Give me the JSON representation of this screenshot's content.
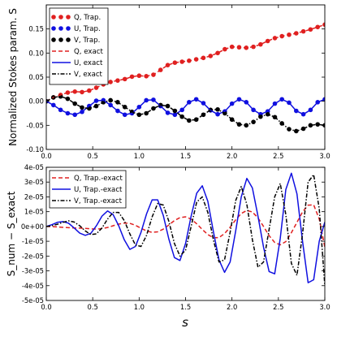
{
  "chart_data": [
    {
      "type": "line",
      "title": "",
      "xlabel": "",
      "ylabel": "Normalized Stokes param. S",
      "xlim": [
        0.0,
        3.0
      ],
      "ylim": [
        -0.1,
        0.2
      ],
      "xticks": [
        0.0,
        0.5,
        1.0,
        1.5,
        2.0,
        2.5,
        3.0
      ],
      "xtick_labels": [
        "0.0",
        "0.5",
        "1.0",
        "1.5",
        "2.0",
        "2.5",
        "3.0"
      ],
      "yticks": [
        -0.1,
        -0.05,
        0.0,
        0.05,
        0.1,
        0.15
      ],
      "ytick_labels": [
        "-0.10",
        "-0.05",
        "0.00",
        "0.05",
        "0.10",
        "0.15"
      ],
      "grid": false,
      "legend_position": "upper-left",
      "series": [
        {
          "name": "Q, Trap.",
          "style": "markers",
          "color": "#e02020",
          "x": [
            0.0,
            0.077,
            0.154,
            0.231,
            0.308,
            0.385,
            0.462,
            0.538,
            0.615,
            0.692,
            0.769,
            0.846,
            0.923,
            1.0,
            1.077,
            1.154,
            1.231,
            1.308,
            1.385,
            1.462,
            1.538,
            1.615,
            1.692,
            1.769,
            1.846,
            1.923,
            2.0,
            2.077,
            2.154,
            2.231,
            2.308,
            2.385,
            2.462,
            2.538,
            2.615,
            2.692,
            2.769,
            2.846,
            2.923,
            3.0
          ],
          "y": [
            0.0,
            0.008,
            0.013,
            0.018,
            0.02,
            0.019,
            0.022,
            0.028,
            0.035,
            0.04,
            0.043,
            0.046,
            0.051,
            0.053,
            0.052,
            0.055,
            0.065,
            0.075,
            0.08,
            0.082,
            0.084,
            0.087,
            0.09,
            0.094,
            0.1,
            0.108,
            0.113,
            0.112,
            0.111,
            0.113,
            0.118,
            0.125,
            0.131,
            0.135,
            0.138,
            0.141,
            0.145,
            0.149,
            0.154,
            0.159
          ]
        },
        {
          "name": "U, Trap.",
          "style": "markers",
          "color": "#1010e0",
          "x": [
            0.0,
            0.077,
            0.154,
            0.231,
            0.308,
            0.385,
            0.462,
            0.538,
            0.615,
            0.692,
            0.769,
            0.846,
            0.923,
            1.0,
            1.077,
            1.154,
            1.231,
            1.308,
            1.385,
            1.462,
            1.538,
            1.615,
            1.692,
            1.769,
            1.846,
            1.923,
            2.0,
            2.077,
            2.154,
            2.231,
            2.308,
            2.385,
            2.462,
            2.538,
            2.615,
            2.692,
            2.769,
            2.846,
            2.923,
            3.0
          ],
          "y": [
            0.0,
            -0.008,
            -0.018,
            -0.025,
            -0.028,
            -0.022,
            -0.01,
            0.001,
            0.002,
            -0.008,
            -0.02,
            -0.028,
            -0.025,
            -0.012,
            0.002,
            0.003,
            -0.01,
            -0.024,
            -0.028,
            -0.018,
            -0.002,
            0.004,
            -0.004,
            -0.019,
            -0.027,
            -0.021,
            -0.005,
            0.004,
            -0.002,
            -0.018,
            -0.027,
            -0.021,
            -0.005,
            0.004,
            -0.003,
            -0.02,
            -0.027,
            -0.018,
            -0.002,
            0.004
          ]
        },
        {
          "name": "V, Trap.",
          "style": "markers",
          "color": "#000000",
          "x": [
            0.0,
            0.077,
            0.154,
            0.231,
            0.308,
            0.385,
            0.462,
            0.538,
            0.615,
            0.692,
            0.769,
            0.846,
            0.923,
            1.0,
            1.077,
            1.154,
            1.231,
            1.308,
            1.385,
            1.462,
            1.538,
            1.615,
            1.692,
            1.769,
            1.846,
            1.923,
            2.0,
            2.077,
            2.154,
            2.231,
            2.308,
            2.385,
            2.462,
            2.538,
            2.615,
            2.692,
            2.769,
            2.846,
            2.923,
            3.0
          ],
          "y": [
            0.0,
            0.008,
            0.01,
            0.005,
            -0.005,
            -0.013,
            -0.015,
            -0.01,
            -0.002,
            0.002,
            -0.002,
            -0.012,
            -0.022,
            -0.028,
            -0.025,
            -0.015,
            -0.008,
            -0.01,
            -0.02,
            -0.032,
            -0.04,
            -0.038,
            -0.028,
            -0.018,
            -0.017,
            -0.025,
            -0.038,
            -0.048,
            -0.05,
            -0.043,
            -0.032,
            -0.027,
            -0.033,
            -0.046,
            -0.058,
            -0.062,
            -0.057,
            -0.05,
            -0.048,
            -0.05
          ]
        },
        {
          "name": "Q, exact",
          "style": "dashed",
          "color": "#e02020",
          "x": [
            0.0,
            0.077,
            0.154,
            0.231,
            0.308,
            0.385,
            0.462,
            0.538,
            0.615,
            0.692,
            0.769,
            0.846,
            0.923,
            1.0,
            1.077,
            1.154,
            1.231,
            1.308,
            1.385,
            1.462,
            1.538,
            1.615,
            1.692,
            1.769,
            1.846,
            1.923,
            2.0,
            2.077,
            2.154,
            2.231,
            2.308,
            2.385,
            2.462,
            2.538,
            2.615,
            2.692,
            2.769,
            2.846,
            2.923,
            3.0
          ],
          "y": [
            0.0,
            0.008,
            0.013,
            0.018,
            0.02,
            0.019,
            0.022,
            0.028,
            0.035,
            0.04,
            0.043,
            0.046,
            0.051,
            0.053,
            0.052,
            0.055,
            0.065,
            0.075,
            0.08,
            0.082,
            0.084,
            0.087,
            0.09,
            0.094,
            0.1,
            0.108,
            0.113,
            0.112,
            0.111,
            0.113,
            0.118,
            0.125,
            0.131,
            0.135,
            0.138,
            0.141,
            0.145,
            0.149,
            0.154,
            0.159
          ]
        },
        {
          "name": "U, exact",
          "style": "solid",
          "color": "#1010e0",
          "x": [
            0.0,
            0.077,
            0.154,
            0.231,
            0.308,
            0.385,
            0.462,
            0.538,
            0.615,
            0.692,
            0.769,
            0.846,
            0.923,
            1.0,
            1.077,
            1.154,
            1.231,
            1.308,
            1.385,
            1.462,
            1.538,
            1.615,
            1.692,
            1.769,
            1.846,
            1.923,
            2.0,
            2.077,
            2.154,
            2.231,
            2.308,
            2.385,
            2.462,
            2.538,
            2.615,
            2.692,
            2.769,
            2.846,
            2.923,
            3.0
          ],
          "y": [
            0.0,
            -0.008,
            -0.018,
            -0.025,
            -0.028,
            -0.022,
            -0.01,
            0.001,
            0.002,
            -0.008,
            -0.02,
            -0.028,
            -0.025,
            -0.012,
            0.002,
            0.003,
            -0.01,
            -0.024,
            -0.028,
            -0.018,
            -0.002,
            0.004,
            -0.004,
            -0.019,
            -0.027,
            -0.021,
            -0.005,
            0.004,
            -0.002,
            -0.018,
            -0.027,
            -0.021,
            -0.005,
            0.004,
            -0.003,
            -0.02,
            -0.027,
            -0.018,
            -0.002,
            0.004
          ]
        },
        {
          "name": "V, exact",
          "style": "dashdot",
          "color": "#000000",
          "x": [
            0.0,
            0.077,
            0.154,
            0.231,
            0.308,
            0.385,
            0.462,
            0.538,
            0.615,
            0.692,
            0.769,
            0.846,
            0.923,
            1.0,
            1.077,
            1.154,
            1.231,
            1.308,
            1.385,
            1.462,
            1.538,
            1.615,
            1.692,
            1.769,
            1.846,
            1.923,
            2.0,
            2.077,
            2.154,
            2.231,
            2.308,
            2.385,
            2.462,
            2.538,
            2.615,
            2.692,
            2.769,
            2.846,
            2.923,
            3.0
          ],
          "y": [
            0.0,
            0.008,
            0.01,
            0.005,
            -0.005,
            -0.013,
            -0.015,
            -0.01,
            -0.002,
            0.002,
            -0.002,
            -0.012,
            -0.022,
            -0.028,
            -0.025,
            -0.015,
            -0.008,
            -0.01,
            -0.02,
            -0.032,
            -0.04,
            -0.038,
            -0.028,
            -0.018,
            -0.017,
            -0.025,
            -0.038,
            -0.048,
            -0.05,
            -0.043,
            -0.032,
            -0.027,
            -0.033,
            -0.046,
            -0.058,
            -0.062,
            -0.057,
            -0.05,
            -0.048,
            -0.05
          ]
        }
      ]
    },
    {
      "type": "line",
      "title": "",
      "xlabel": "s",
      "ylabel": "S_num − S_exact",
      "xlim": [
        0.0,
        3.0
      ],
      "ylim": [
        -5e-05,
        4e-05
      ],
      "xticks": [
        0.0,
        0.5,
        1.0,
        1.5,
        2.0,
        2.5,
        3.0
      ],
      "xtick_labels": [
        "0.0",
        "0.5",
        "1.0",
        "1.5",
        "2.0",
        "2.5",
        "3.0"
      ],
      "yticks": [
        -5e-05,
        -4e-05,
        -3e-05,
        -2e-05,
        -1e-05,
        0,
        1e-05,
        2e-05,
        3e-05,
        4e-05
      ],
      "ytick_labels": [
        "-5e-05",
        "-4e-05",
        "-3e-05",
        "-2e-05",
        "-1e-05",
        "0e+00",
        "1e-05",
        "2e-05",
        "3e-05",
        "4e-05"
      ],
      "grid": false,
      "legend_position": "upper-left",
      "series": [
        {
          "name": "Q, Trap.-exact",
          "style": "dashed",
          "color": "#e02020",
          "x": [
            0.0,
            0.06,
            0.12,
            0.18,
            0.24,
            0.3,
            0.36,
            0.42,
            0.48,
            0.54,
            0.6,
            0.66,
            0.72,
            0.78,
            0.84,
            0.9,
            0.96,
            1.02,
            1.08,
            1.14,
            1.2,
            1.26,
            1.32,
            1.38,
            1.44,
            1.5,
            1.56,
            1.62,
            1.68,
            1.74,
            1.8,
            1.86,
            1.92,
            1.98,
            2.04,
            2.1,
            2.16,
            2.22,
            2.28,
            2.34,
            2.4,
            2.46,
            2.52,
            2.58,
            2.64,
            2.7,
            2.76,
            2.82,
            2.88,
            2.94,
            3.0
          ],
          "y": [
            0,
            -1e-07,
            -3e-07,
            -6e-07,
            -8e-07,
            -1e-06,
            -1.1e-06,
            -1.3e-06,
            -1.6e-06,
            -1.8e-06,
            -1.4e-06,
            -7e-07,
            5e-07,
            1.6e-06,
            2.3e-06,
            2.1e-06,
            8e-07,
            -1.2e-06,
            -3e-06,
            -4e-06,
            -3.6e-06,
            -1.8e-06,
            1e-06,
            4e-06,
            6e-06,
            6.5e-06,
            5e-06,
            1.8e-06,
            -2e-06,
            -5.5e-06,
            -7.6e-06,
            -7.5e-06,
            -4.8e-06,
            -5e-07,
            4.5e-06,
            8.8e-06,
            1.08e-05,
            9.8e-06,
            5.8e-06,
            0,
            -6.2e-06,
            -1.08e-05,
            -1.24e-05,
            -1.02e-05,
            -4.2e-06,
            2.8e-06,
            9.8e-06,
            1.44e-05,
            1.46e-05,
            5e-06,
            -1.4e-05
          ]
        },
        {
          "name": "U, Trap.-exact",
          "style": "solid",
          "color": "#1010e0",
          "x": [
            0.0,
            0.06,
            0.12,
            0.18,
            0.24,
            0.3,
            0.36,
            0.42,
            0.48,
            0.54,
            0.6,
            0.66,
            0.72,
            0.78,
            0.84,
            0.9,
            0.96,
            1.02,
            1.08,
            1.14,
            1.2,
            1.26,
            1.32,
            1.38,
            1.44,
            1.5,
            1.56,
            1.62,
            1.68,
            1.74,
            1.8,
            1.86,
            1.92,
            1.98,
            2.04,
            2.1,
            2.16,
            2.22,
            2.28,
            2.34,
            2.4,
            2.46,
            2.52,
            2.58,
            2.64,
            2.7,
            2.76,
            2.82,
            2.88,
            2.94,
            3.0
          ],
          "y": [
            0,
            1.2e-06,
            2.8e-06,
            3.3e-06,
            2.2e-06,
            -1e-06,
            -4.5e-06,
            -6e-06,
            -4.6e-06,
            5e-07,
            7e-06,
            1.05e-05,
            8e-06,
            5e-07,
            -9e-06,
            -1.55e-05,
            -1.35e-05,
            -4e-06,
            8.5e-06,
            1.8e-05,
            1.8e-05,
            7.5e-06,
            -8.5e-06,
            -2.1e-05,
            -2.3e-05,
            -1.15e-05,
            7e-06,
            2.25e-05,
            2.75e-05,
            1.7e-05,
            -3.5e-06,
            -2.25e-05,
            -3.1e-05,
            -2.4e-05,
            -3e-06,
            2e-05,
            3.25e-05,
            2.6e-05,
            7e-06,
            -1.4e-05,
            -3.05e-05,
            -3.2e-05,
            -8e-06,
            2.5e-05,
            3.6e-05,
            2.2e-05,
            -1e-05,
            -3.8e-05,
            -3.6e-05,
            -1e-05,
            3e-06
          ]
        },
        {
          "name": "V, Trap.-exact",
          "style": "dashdot",
          "color": "#000000",
          "x": [
            0.0,
            0.06,
            0.12,
            0.18,
            0.24,
            0.3,
            0.36,
            0.42,
            0.48,
            0.54,
            0.6,
            0.66,
            0.72,
            0.78,
            0.84,
            0.9,
            0.96,
            1.02,
            1.08,
            1.14,
            1.2,
            1.26,
            1.32,
            1.38,
            1.44,
            1.5,
            1.56,
            1.62,
            1.68,
            1.74,
            1.8,
            1.86,
            1.92,
            1.98,
            2.04,
            2.1,
            2.16,
            2.22,
            2.28,
            2.34,
            2.4,
            2.46,
            2.52,
            2.58,
            2.64,
            2.7,
            2.76,
            2.82,
            2.88,
            2.94,
            3.0
          ],
          "y": [
            0,
            5e-07,
            1.5e-06,
            2.8e-06,
            3.8e-06,
            3e-06,
            5e-07,
            -3e-06,
            -5.5e-06,
            -5e-06,
            -1e-06,
            5e-06,
            9.5e-06,
            9.5e-06,
            4e-06,
            -5e-06,
            -1.25e-05,
            -1.35e-05,
            -6e-06,
            6.5e-06,
            1.55e-05,
            1.45e-05,
            3.5e-06,
            -1.15e-05,
            -2e-05,
            -1.6e-05,
            0,
            1.65e-05,
            2e-05,
            9.5e-06,
            -9e-06,
            -2.4e-05,
            -2.25e-05,
            -4e-06,
            1.75e-05,
            2.7e-05,
            1.5e-05,
            -9e-06,
            -2.75e-05,
            -2.4e-05,
            -2e-06,
            2e-05,
            2.9e-05,
            8e-06,
            -2.5e-05,
            -3.3e-05,
            -5e-06,
            3e-05,
            3.5e-05,
            1.2e-05,
            -4e-05
          ]
        }
      ]
    }
  ]
}
